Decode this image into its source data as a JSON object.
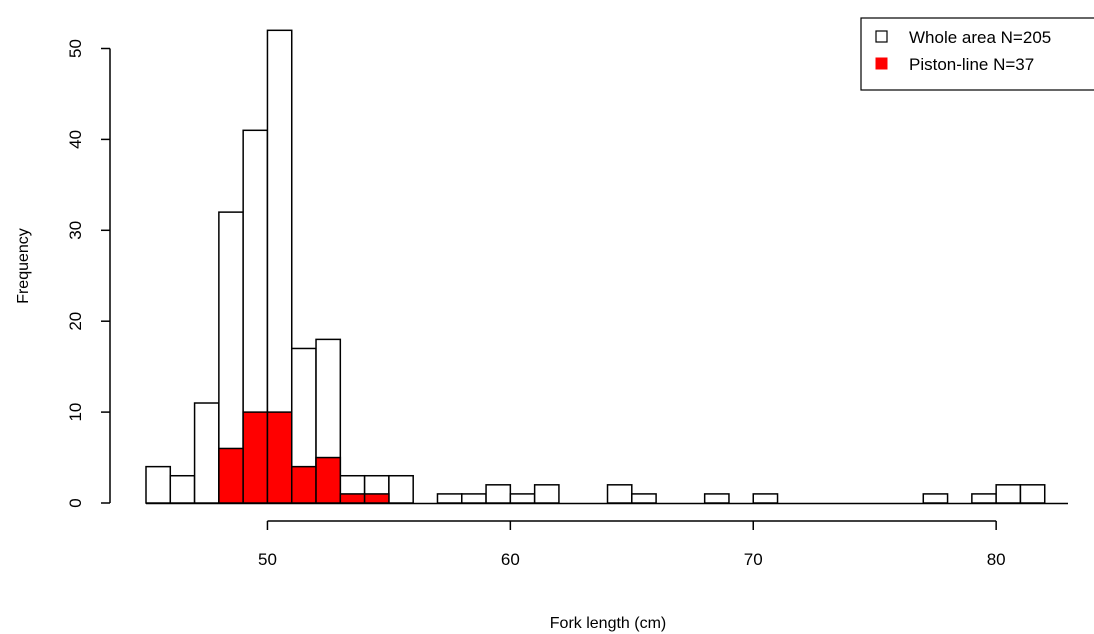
{
  "chart_data": {
    "type": "bar",
    "subtype": "overlaid-histogram",
    "title": "",
    "xlabel": "Fork length (cm)",
    "ylabel": "Frequency",
    "xlim": [
      45,
      83
    ],
    "ylim": [
      0,
      52
    ],
    "x_ticks": [
      50,
      60,
      70,
      80
    ],
    "y_ticks": [
      0,
      10,
      20,
      30,
      40,
      50
    ],
    "bin_width": 1,
    "bin_starts": [
      45,
      46,
      47,
      48,
      49,
      50,
      51,
      52,
      53,
      54,
      55,
      56,
      57,
      58,
      59,
      60,
      61,
      62,
      63,
      64,
      65,
      66,
      67,
      68,
      69,
      70,
      71,
      72,
      73,
      74,
      75,
      76,
      77,
      78,
      79,
      80,
      81
    ],
    "grid": false,
    "legend_position": "top-right",
    "series": [
      {
        "name": "Whole area N=205",
        "fill": "#ffffff",
        "stroke": "#000000",
        "values": [
          4,
          3,
          11,
          32,
          41,
          52,
          17,
          18,
          3,
          3,
          3,
          0,
          1,
          1,
          2,
          1,
          2,
          0,
          0,
          2,
          1,
          0,
          0,
          1,
          0,
          1,
          0,
          0,
          0,
          0,
          0,
          0,
          1,
          0,
          1,
          2,
          2
        ]
      },
      {
        "name": "Piston-line N=37",
        "fill": "#ff0000",
        "stroke": "#000000",
        "values": [
          0,
          0,
          0,
          6,
          10,
          10,
          4,
          5,
          1,
          1,
          0,
          0,
          0,
          0,
          0,
          0,
          0,
          0,
          0,
          0,
          0,
          0,
          0,
          0,
          0,
          0,
          0,
          0,
          0,
          0,
          0,
          0,
          0,
          0,
          0,
          0,
          0
        ]
      }
    ]
  }
}
